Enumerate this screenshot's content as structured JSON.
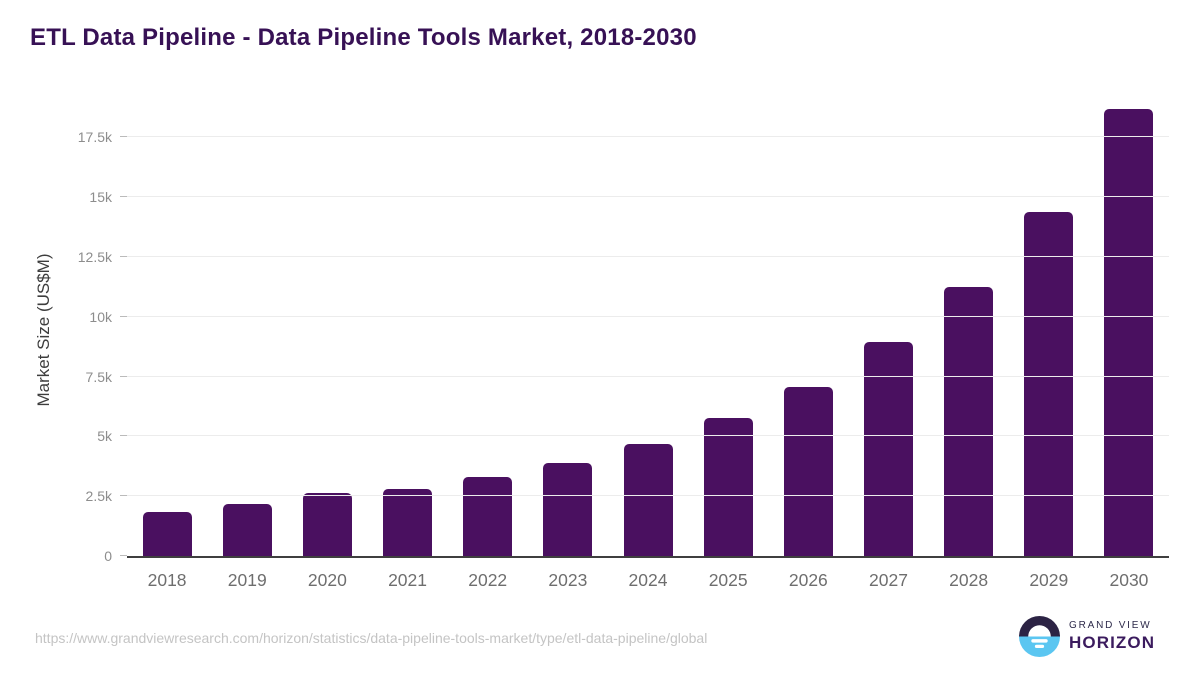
{
  "header": {
    "title": "ETL Data Pipeline - Data Pipeline Tools Market, 2018-2030"
  },
  "chart_data": {
    "type": "bar",
    "title": "ETL Data Pipeline - Data Pipeline Tools Market, 2018-2030",
    "xlabel": "",
    "ylabel": "Market Size (US$M)",
    "categories": [
      "2018",
      "2019",
      "2020",
      "2021",
      "2022",
      "2023",
      "2024",
      "2025",
      "2026",
      "2027",
      "2028",
      "2029",
      "2030"
    ],
    "values": [
      1840,
      2190,
      2630,
      2815,
      3290,
      3900,
      4700,
      5770,
      7060,
      8930,
      11240,
      14400,
      18690
    ],
    "ylim": [
      0,
      19150
    ],
    "ytick_values": [
      0,
      2500,
      5000,
      7500,
      10000,
      12500,
      15000,
      17500
    ],
    "ytick_labels": [
      "0",
      "2.5k",
      "5k",
      "7.5k",
      "10k",
      "12.5k",
      "15k",
      "17.5k"
    ],
    "grid": true,
    "legend": false,
    "bar_color": "#4a1060"
  },
  "footer": {
    "source_url": "https://www.grandviewresearch.com/horizon/statistics/data-pipeline-tools-market/type/etl-data-pipeline/global",
    "logo": {
      "top_text": "GRAND VIEW",
      "bottom_text": "HORIZON"
    }
  },
  "colors": {
    "title": "#371155",
    "bar": "#4a1060",
    "axis_line": "#3f3f3f",
    "gridline": "#ececec",
    "tick_label": "#8d8d8d",
    "x_label": "#6e6e6e",
    "y_axis_label": "#3d3d3d",
    "source_url": "#c4c4c4",
    "logo_dark_half": "#2c2344",
    "logo_blue_half": "#5bc6f1",
    "logo_horizon_text": "#3b1b5e",
    "logo_grandview_text": "#2d2a4a"
  }
}
